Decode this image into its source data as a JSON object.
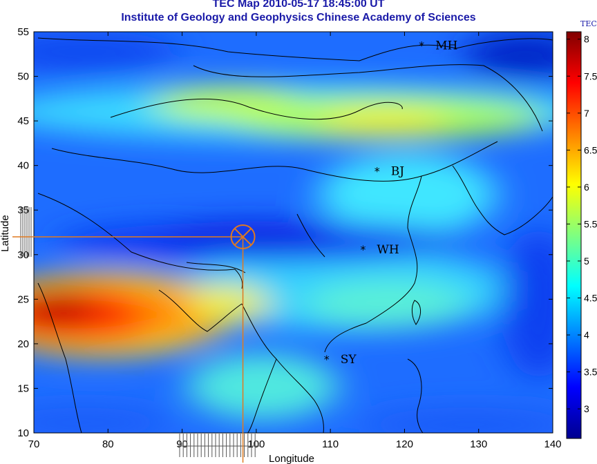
{
  "title": "TEC Map 2010-05-17 18:45:00 UT",
  "subtitle": "Institute of Geology and Geophysics Chinese Academy of Sciences",
  "colorbar_label": "TEC",
  "chart_data": {
    "type": "heatmap",
    "title": "TEC Map 2010-05-17 18:45:00 UT",
    "subtitle": "Institute of Geology and Geophysics Chinese Academy of Sciences",
    "xlabel": "Longitude",
    "ylabel": "Latitude",
    "xlim": [
      70,
      140
    ],
    "ylim": [
      10,
      55
    ],
    "x_ticks": [
      70,
      80,
      90,
      100,
      110,
      120,
      130,
      140
    ],
    "y_ticks": [
      10,
      15,
      20,
      25,
      30,
      35,
      40,
      45,
      50,
      55
    ],
    "colorbar": {
      "label": "TEC",
      "range": [
        2.6,
        8.1
      ],
      "ticks": [
        3,
        3.5,
        4,
        4.5,
        5,
        5.5,
        6,
        6.5,
        7,
        7.5,
        8
      ],
      "tick_labels": [
        "3",
        "3.5",
        "4",
        "4.5",
        "5",
        "5.5",
        "6",
        "6.5",
        "7",
        "7.5",
        "8"
      ],
      "colormap": "jet"
    },
    "features": [
      {
        "type": "band",
        "lat": 24,
        "lon_start": 70,
        "lon_end": 88,
        "peak_tec": 7.8
      },
      {
        "type": "band",
        "lat": 44,
        "lon_start": 70,
        "lon_end": 140,
        "peak_tec": 6.0
      },
      {
        "type": "trough",
        "lat": 32,
        "lon_start": 70,
        "lon_end": 140,
        "min_tec": 3.0
      }
    ],
    "stations": [
      {
        "name": "MH",
        "lon": 122.3,
        "lat": 53.5
      },
      {
        "name": "BJ",
        "lon": 116.3,
        "lat": 39.4
      },
      {
        "name": "WH",
        "lon": 114.4,
        "lat": 30.6
      },
      {
        "name": "SY",
        "lon": 109.5,
        "lat": 18.3
      }
    ],
    "marker": {
      "lon": 98.2,
      "lat": 32.0
    }
  }
}
